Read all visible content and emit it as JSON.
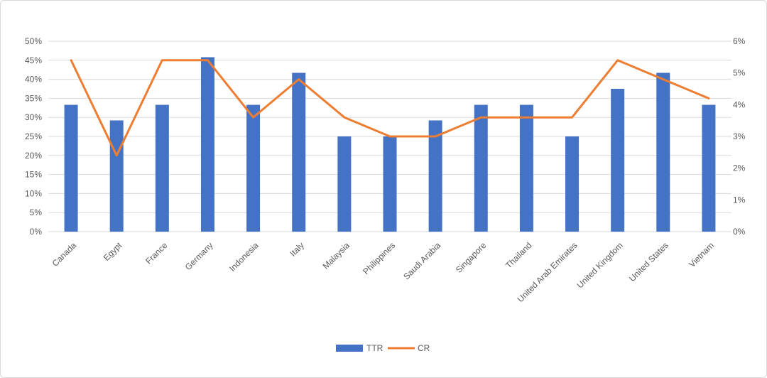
{
  "chart_data": {
    "type": "bar",
    "title": "",
    "xlabel": "",
    "ylabel": "",
    "categories": [
      "Canada",
      "Egypt",
      "France",
      "Germany",
      "Indonesia",
      "Italy",
      "Malaysia",
      "Philippines",
      "Saudi  Arabia",
      "Singapore",
      "Thailand",
      "United  Arab  Emirates",
      "United  Kingdom",
      "United  States",
      "Vietnam"
    ],
    "series": [
      {
        "name": "TTR",
        "kind": "bar",
        "axis": "left",
        "color": "#4472c4",
        "values": [
          33.3,
          29.2,
          33.3,
          45.8,
          33.3,
          41.7,
          25.0,
          25.0,
          29.2,
          33.3,
          33.3,
          25.0,
          37.5,
          41.7,
          33.3
        ]
      },
      {
        "name": "CR",
        "kind": "line",
        "axis": "right",
        "color": "#ed7d31",
        "values": [
          5.4,
          2.4,
          5.4,
          5.4,
          3.6,
          4.8,
          3.6,
          3.0,
          3.0,
          3.6,
          3.6,
          3.6,
          5.4,
          4.8,
          4.2
        ]
      }
    ],
    "ylim": [
      0,
      50
    ],
    "y2lim": [
      0,
      6
    ],
    "yticks": [
      "0%",
      "5%",
      "10%",
      "15%",
      "20%",
      "25%",
      "30%",
      "35%",
      "40%",
      "45%",
      "50%"
    ],
    "y2ticks": [
      "0%",
      "1%",
      "2%",
      "3%",
      "4%",
      "5%",
      "6%"
    ],
    "grid": true,
    "legend": "bottom-center"
  }
}
